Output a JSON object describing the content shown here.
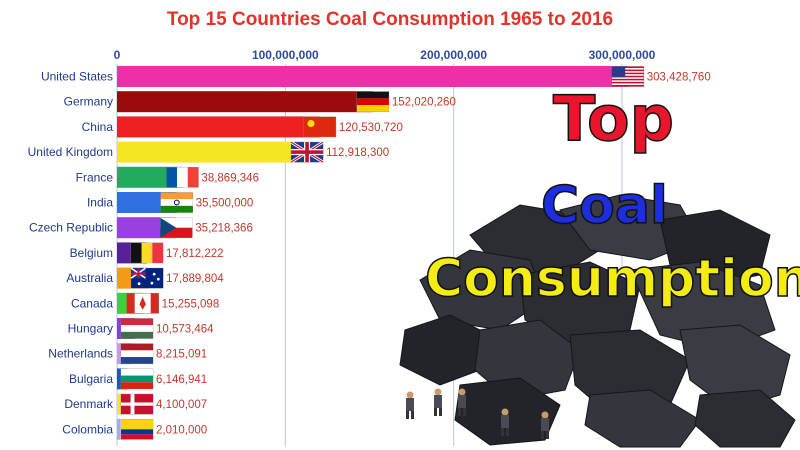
{
  "chart_data": {
    "type": "bar",
    "title": "Top 15 Countries Coal Consumption 1965 to 2016",
    "xlim": [
      0,
      300000000
    ],
    "ticks": [
      0,
      100000000,
      200000000,
      300000000
    ],
    "tick_labels": [
      "0",
      "100,000,000",
      "200,000,000",
      "300,000,000"
    ],
    "grid": true,
    "orientation": "horizontal",
    "categories": [
      "United States",
      "Germany",
      "China",
      "United Kingdom",
      "France",
      "India",
      "Czech Republic",
      "Belgium",
      "Australia",
      "Canada",
      "Hungary",
      "Netherlands",
      "Bulgaria",
      "Denmark",
      "Colombia"
    ],
    "values": [
      303428760,
      152020260,
      120530720,
      112918300,
      38869346,
      35500000,
      35218366,
      17812222,
      17889804,
      15255098,
      10573464,
      8215091,
      6146941,
      4100007,
      2010000
    ],
    "value_labels": [
      "303,428,760",
      "152,020,260",
      "120,530,720",
      "112,918,300",
      "38,869,346",
      "35,500,000",
      "35,218,366",
      "17,812,222",
      "17,889,804",
      "15,255,098",
      "10,573,464",
      "8,215,091",
      "6,146,941",
      "4,100,007",
      "2,010,000"
    ],
    "colors": [
      "#ee2fa8",
      "#9c0b0b",
      "#ee2020",
      "#f6e522",
      "#22aa5d",
      "#2f6fe0",
      "#9a3fe0",
      "#5a2096",
      "#f59a14",
      "#38d33b",
      "#8a3fd6",
      "#c89ae4",
      "#1a5ab0",
      "#f2e43e",
      "#9fb0e8"
    ],
    "flags": [
      "us-flag",
      "germany-flag",
      "china-flag",
      "uk-flag",
      "france-flag",
      "india-flag",
      "czech-flag",
      "belgium-flag",
      "australia-flag",
      "canada-flag",
      "hungary-flag",
      "netherlands-flag",
      "bulgaria-flag",
      "denmark-flag",
      "colombia-flag"
    ]
  },
  "overlay": {
    "line1": "Top",
    "line2": "Coal",
    "line3": "Consumption",
    "colors": [
      "#e8152c",
      "#1d2ee0",
      "#f4ec12"
    ]
  }
}
